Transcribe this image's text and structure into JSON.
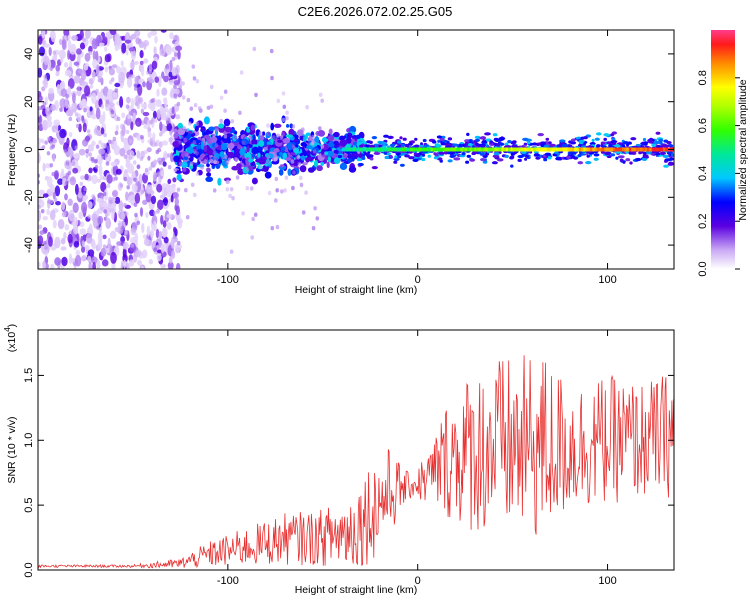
{
  "title": "C2E6.2026.072.02.25.G05",
  "colors": {
    "snr_line": "#e83030",
    "axis": "#000000"
  },
  "chart_data": [
    {
      "type": "heatmap",
      "xlabel": "Height of straight line (km)",
      "ylabel": "Frequency (Hz)",
      "xlim": [
        -200,
        135
      ],
      "ylim": [
        -50,
        50
      ],
      "xticks": [
        -100,
        0,
        100
      ],
      "yticks": [
        -40,
        -20,
        0,
        20,
        40
      ],
      "colorbar": {
        "label": "Normalized spectral amplitude",
        "range": [
          0,
          1
        ],
        "ticks": [
          "0.0",
          "0.2",
          "0.4",
          "0.6",
          "0.8"
        ],
        "tick_values": [
          0,
          0.2,
          0.4,
          0.6,
          0.8
        ]
      },
      "description_regions": [
        {
          "x_range": [
            -200,
            -125
          ],
          "freq_spread": 50,
          "amplitude": 0.05
        },
        {
          "x_range": [
            -125,
            -30
          ],
          "freq_spread": 8,
          "amplitude": 0.3
        },
        {
          "x_range": [
            -30,
            135
          ],
          "freq_spread": 2,
          "amplitude": 0.9
        }
      ]
    },
    {
      "type": "line",
      "xlabel": "Height of straight line (km)",
      "ylabel": "SNR (10 * v/v)",
      "multiplier_label": "(x10^4)",
      "multiplier_base": "(x10",
      "multiplier_exp": "4",
      "multiplier_close": ")",
      "xlim": [
        -200,
        135
      ],
      "ylim": [
        0,
        1.85
      ],
      "xticks": [
        -100,
        0,
        100
      ],
      "yticks": [
        "0.0",
        "0.5",
        "1.0",
        "1.5"
      ],
      "ytick_values": [
        0,
        0.5,
        1.0,
        1.5
      ],
      "envelope": {
        "x": [
          -200,
          -150,
          -125,
          -110,
          -90,
          -70,
          -50,
          -35,
          -25,
          -15,
          -5,
          5,
          15,
          25,
          40,
          55,
          65,
          80,
          100,
          120,
          135
        ],
        "mean": [
          0.03,
          0.03,
          0.05,
          0.12,
          0.18,
          0.24,
          0.25,
          0.3,
          0.45,
          0.6,
          0.65,
          0.7,
          0.85,
          0.9,
          0.95,
          0.95,
          0.95,
          0.95,
          1.0,
          1.0,
          1.05
        ],
        "amp": [
          0.01,
          0.01,
          0.04,
          0.1,
          0.15,
          0.2,
          0.22,
          0.3,
          0.4,
          0.35,
          0.1,
          0.2,
          0.45,
          0.6,
          0.7,
          0.7,
          0.75,
          0.5,
          0.5,
          0.45,
          0.5
        ]
      }
    }
  ]
}
